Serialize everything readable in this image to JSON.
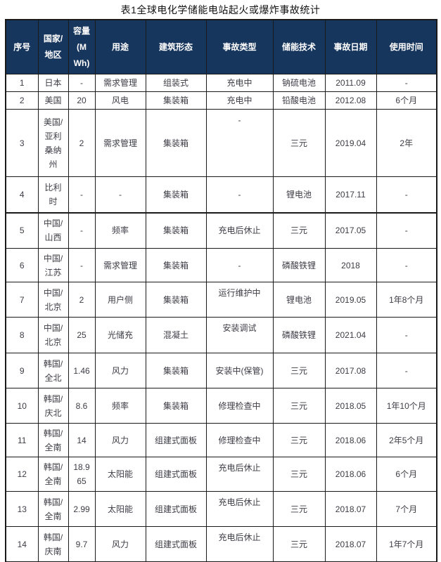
{
  "page_title": "表1全球电化学储能电站起火或爆炸事故统计",
  "colors": {
    "header_bg": "#17365d",
    "header_text": "#ffffff",
    "body_text": "#3d3d46",
    "border": "#1a1a1a"
  },
  "table": {
    "headers": {
      "index": "序号",
      "region": "国家/\n地区",
      "capacity": "容量\n(M\nWh)",
      "usage": "用途",
      "building": "建筑形态",
      "accident_type": "事故类型",
      "tech": "储能技术",
      "date": "事故日期",
      "duration": "使用时间"
    },
    "rows": [
      {
        "index": "1",
        "region": "日本",
        "capacity": "-",
        "usage": "需求管理",
        "building": "组装式",
        "accident_type": "充电中",
        "tech": "钠硫电池",
        "date": "2011.09",
        "duration": "-",
        "accident_top": false
      },
      {
        "index": "2",
        "region": "美国",
        "capacity": "20",
        "usage": "风电",
        "building": "集装箱",
        "accident_type": "充电中",
        "tech": "铅酸电池",
        "date": "2012.08",
        "duration": "6个月",
        "accident_top": false
      },
      {
        "index": "3",
        "region": "美国/\n亚利\n桑纳\n州",
        "capacity": "2",
        "usage": "需求管理",
        "building": "集装箱",
        "accident_type": "-",
        "tech": "三元",
        "date": "2019.04",
        "duration": "2年",
        "accident_top": true
      },
      {
        "index": "4",
        "region": "比利\n时",
        "capacity": "-",
        "usage": "-",
        "building": "集装箱",
        "accident_type": "-",
        "tech": "锂电池",
        "date": "2017.11",
        "duration": "-",
        "accident_top": false
      },
      {
        "index": "5",
        "region": "中国/\n山西",
        "capacity": "-",
        "usage": "频率",
        "building": "集装箱",
        "accident_type": "充电后休止",
        "tech": "三元",
        "date": "2017.05",
        "duration": "-",
        "accident_top": false
      },
      {
        "index": "6",
        "region": "中国/\n江苏",
        "capacity": "-",
        "usage": "需求管理",
        "building": "集装箱",
        "accident_type": "-",
        "tech": "磷酸铁锂",
        "date": "2018",
        "duration": "-",
        "accident_top": false
      },
      {
        "index": "7",
        "region": "中国/\n北京",
        "capacity": "2",
        "usage": "用户侧",
        "building": "集装箱",
        "accident_type": "运行维护中",
        "tech": "锂电池",
        "date": "2019.05",
        "duration": "1年8个月",
        "accident_top": true
      },
      {
        "index": "8",
        "region": "中国/\n北京",
        "capacity": "25",
        "usage": "光储充",
        "building": "混凝土",
        "accident_type": "安装调试",
        "tech": "磷酸铁锂",
        "date": "2021.04",
        "duration": "-",
        "accident_top": true
      },
      {
        "index": "9",
        "region": "韩国/\n全北",
        "capacity": "1.46",
        "usage": "风力",
        "building": "集装箱",
        "accident_type": "安装中(保管)",
        "tech": "三元",
        "date": "2017.08",
        "duration": "-",
        "accident_top": false
      },
      {
        "index": "10",
        "region": "韩国/\n庆北",
        "capacity": "8.6",
        "usage": "频率",
        "building": "集装箱",
        "accident_type": "修理检查中",
        "tech": "三元",
        "date": "2018.05",
        "duration": "1年10个月",
        "accident_top": false
      },
      {
        "index": "11",
        "region": "韩国/\n全南",
        "capacity": "14",
        "usage": "风力",
        "building": "组建式面板",
        "accident_type": "修理检查中",
        "tech": "三元",
        "date": "2018.06",
        "duration": "2年5个月",
        "accident_top": false
      },
      {
        "index": "12",
        "region": "韩国/\n全南",
        "capacity": "18.9\n65",
        "usage": "太阳能",
        "building": "组建式面板",
        "accident_type": "充电后休止",
        "tech": "三元",
        "date": "2018.06",
        "duration": "6个月",
        "accident_top": true
      },
      {
        "index": "13",
        "region": "韩国/\n全南",
        "capacity": "2.99",
        "usage": "太阳能",
        "building": "组建式面板",
        "accident_type": "充电后休止",
        "tech": "三元",
        "date": "2018.07",
        "duration": "7个月",
        "accident_top": true
      },
      {
        "index": "14",
        "region": "韩国/\n庆南",
        "capacity": "9.7",
        "usage": "风力",
        "building": "组建式面板",
        "accident_type": "充电后休止",
        "tech": "三元",
        "date": "2018.07",
        "duration": "1年7个月",
        "accident_top": true
      }
    ]
  }
}
